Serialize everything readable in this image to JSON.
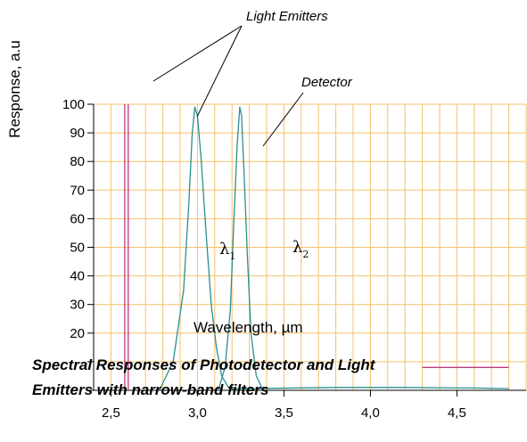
{
  "chart_data": {
    "type": "line",
    "title": "Spectral Responses of Photodetector and Light Emitters with narrow-band filters",
    "title_lines": [
      "Spectral Responses of Photodetector and Light",
      "Emitters with narrow-band filters"
    ],
    "ylabel": "Response, a.u",
    "xlabel": "Wavelength, µm",
    "xlim": [
      2.4,
      4.9
    ],
    "ylim": [
      0,
      100
    ],
    "x_ticks": [
      2.5,
      3.0,
      3.5,
      4.0,
      4.5
    ],
    "x_tick_labels": [
      "2,5",
      "3,0",
      "3,5",
      "4,0",
      "4,5"
    ],
    "y_ticks": [
      0,
      10,
      20,
      30,
      40,
      50,
      60,
      70,
      80,
      90,
      100
    ],
    "y_tick_labels": [
      "",
      "",
      "20",
      "30",
      "40",
      "50",
      "60",
      "70",
      "80",
      "90",
      "100"
    ],
    "grid": true,
    "grid_color": "#f5c26a",
    "series": [
      {
        "color": "#2a8f8f",
        "x": [
          2.78,
          2.86,
          2.92,
          2.95,
          2.97,
          2.985,
          3.0,
          3.02,
          3.05,
          3.08,
          3.11,
          3.14,
          3.18,
          3.22
        ],
        "values": [
          0,
          10,
          35,
          65,
          90,
          99,
          96,
          82,
          55,
          30,
          15,
          5,
          1,
          0
        ]
      },
      {
        "color": "#2a8f8f",
        "x": [
          3.12,
          3.16,
          3.19,
          3.21,
          3.23,
          3.245,
          3.255,
          3.27,
          3.29,
          3.31,
          3.34,
          3.38
        ],
        "values": [
          0,
          8,
          28,
          58,
          86,
          99,
          96,
          75,
          45,
          20,
          5,
          0
        ]
      },
      {
        "color": "#2a8f8f",
        "x": [
          3.2,
          3.4,
          3.8,
          4.2,
          4.6,
          4.8
        ],
        "values": [
          0.5,
          0.7,
          1.0,
          1.0,
          0.8,
          0.6
        ]
      },
      {
        "color": "#c03a86",
        "x": [
          2.58,
          2.58
        ],
        "values": [
          0,
          100
        ]
      },
      {
        "color": "#c03a86",
        "x": [
          2.6,
          2.6
        ],
        "values": [
          0,
          100
        ]
      },
      {
        "color": "#c03a86",
        "x": [
          4.3,
          4.8
        ],
        "values": [
          8,
          8
        ]
      }
    ],
    "annotations": {
      "light_emitters": "Light Emitters",
      "detector": "Detector",
      "lambda1": "λ",
      "lambda1_sub": "1",
      "lambda2": "λ",
      "lambda2_sub": "2"
    }
  }
}
